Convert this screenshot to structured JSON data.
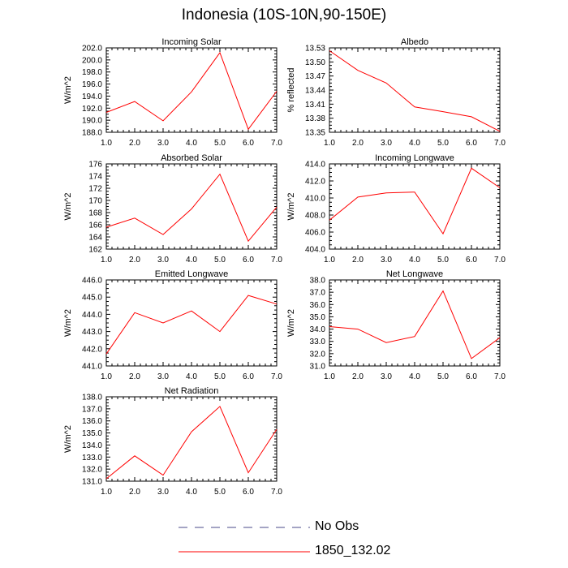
{
  "title": "Indonesia (10S-10N,90-150E)",
  "legend": {
    "items": [
      {
        "label": "No Obs",
        "color": "#4a4a8a",
        "dash": true
      },
      {
        "label": "1850_132.02",
        "color": "#ff0000",
        "dash": false
      }
    ]
  },
  "chart_data": [
    {
      "type": "line",
      "title": "Incoming Solar",
      "ylabel": "W/m^2",
      "x": [
        1,
        2,
        3,
        4,
        5,
        6,
        7
      ],
      "xticks": [
        "1.0",
        "2.0",
        "3.0",
        "4.0",
        "5.0",
        "6.0",
        "7.0"
      ],
      "xlim": [
        1,
        7
      ],
      "ylim": [
        188,
        202
      ],
      "yticks": [
        "188.0",
        "190.0",
        "192.0",
        "194.0",
        "196.0",
        "198.0",
        "200.0",
        "202.0"
      ],
      "series": [
        {
          "name": "1850_132.02",
          "color": "#ff0000",
          "values": [
            191.3,
            193.1,
            189.9,
            194.7,
            201.2,
            188.5,
            194.8
          ]
        }
      ]
    },
    {
      "type": "line",
      "title": "Albedo",
      "ylabel": "% reflected",
      "x": [
        1,
        2,
        3,
        4,
        5,
        6,
        7
      ],
      "xticks": [
        "1.0",
        "2.0",
        "3.0",
        "4.0",
        "5.0",
        "6.0",
        "7.0"
      ],
      "xlim": [
        1,
        7
      ],
      "ylim": [
        13.35,
        13.53
      ],
      "yticks": [
        "13.35",
        "13.38",
        "13.41",
        "13.44",
        "13.47",
        "13.50",
        "13.53"
      ],
      "series": [
        {
          "name": "1850_132.02",
          "color": "#ff0000",
          "values": [
            13.524,
            13.482,
            13.455,
            13.404,
            13.394,
            13.383,
            13.352
          ]
        }
      ]
    },
    {
      "type": "line",
      "title": "Absorbed Solar",
      "ylabel": "W/m^2",
      "x": [
        1,
        2,
        3,
        4,
        5,
        6,
        7
      ],
      "xticks": [
        "1.0",
        "2.0",
        "3.0",
        "4.0",
        "5.0",
        "6.0",
        "7.0"
      ],
      "xlim": [
        1,
        7
      ],
      "ylim": [
        162,
        176
      ],
      "yticks": [
        "162",
        "164",
        "166",
        "168",
        "170",
        "172",
        "174",
        "176"
      ],
      "series": [
        {
          "name": "1850_132.02",
          "color": "#ff0000",
          "values": [
            165.6,
            167.1,
            164.4,
            168.6,
            174.3,
            163.3,
            168.9
          ]
        }
      ]
    },
    {
      "type": "line",
      "title": "Incoming Longwave",
      "ylabel": "W/m^2",
      "x": [
        1,
        2,
        3,
        4,
        5,
        6,
        7
      ],
      "xticks": [
        "1.0",
        "2.0",
        "3.0",
        "4.0",
        "5.0",
        "6.0",
        "7.0"
      ],
      "xlim": [
        1,
        7
      ],
      "ylim": [
        404,
        414
      ],
      "yticks": [
        "404.0",
        "406.0",
        "408.0",
        "410.0",
        "412.0",
        "414.0"
      ],
      "series": [
        {
          "name": "1850_132.02",
          "color": "#ff0000",
          "values": [
            407.4,
            410.1,
            410.6,
            410.7,
            405.8,
            413.5,
            411.2
          ]
        }
      ]
    },
    {
      "type": "line",
      "title": "Emitted Longwave",
      "ylabel": "W/m^2",
      "x": [
        1,
        2,
        3,
        4,
        5,
        6,
        7
      ],
      "xticks": [
        "1.0",
        "2.0",
        "3.0",
        "4.0",
        "5.0",
        "6.0",
        "7.0"
      ],
      "xlim": [
        1,
        7
      ],
      "ylim": [
        441,
        446
      ],
      "yticks": [
        "441.0",
        "442.0",
        "443.0",
        "444.0",
        "445.0",
        "446.0"
      ],
      "series": [
        {
          "name": "1850_132.02",
          "color": "#ff0000",
          "values": [
            441.7,
            444.1,
            443.5,
            444.2,
            443.0,
            445.1,
            444.6
          ]
        }
      ]
    },
    {
      "type": "line",
      "title": "Net Longwave",
      "ylabel": "W/m^2",
      "x": [
        1,
        2,
        3,
        4,
        5,
        6,
        7
      ],
      "xticks": [
        "1.0",
        "2.0",
        "3.0",
        "4.0",
        "5.0",
        "6.0",
        "7.0"
      ],
      "xlim": [
        1,
        7
      ],
      "ylim": [
        31,
        38
      ],
      "yticks": [
        "31.0",
        "32.0",
        "33.0",
        "34.0",
        "35.0",
        "36.0",
        "37.0",
        "38.0"
      ],
      "series": [
        {
          "name": "1850_132.02",
          "color": "#ff0000",
          "values": [
            34.2,
            34.0,
            32.9,
            33.4,
            37.1,
            31.6,
            33.3
          ]
        }
      ]
    },
    {
      "type": "line",
      "title": "Net Radiation",
      "ylabel": "W/m^2",
      "x": [
        1,
        2,
        3,
        4,
        5,
        6,
        7
      ],
      "xticks": [
        "1.0",
        "2.0",
        "3.0",
        "4.0",
        "5.0",
        "6.0",
        "7.0"
      ],
      "xlim": [
        1,
        7
      ],
      "ylim": [
        131,
        138
      ],
      "yticks": [
        "131.0",
        "132.0",
        "133.0",
        "134.0",
        "135.0",
        "136.0",
        "137.0",
        "138.0"
      ],
      "series": [
        {
          "name": "1850_132.02",
          "color": "#ff0000",
          "values": [
            131.2,
            133.1,
            131.5,
            135.1,
            137.2,
            131.7,
            135.3
          ]
        }
      ]
    }
  ]
}
